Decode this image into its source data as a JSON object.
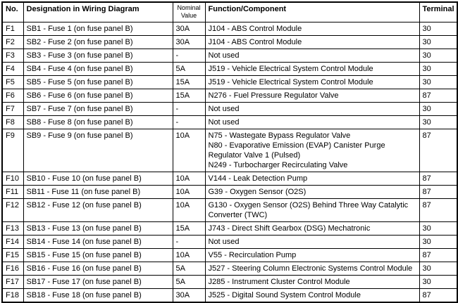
{
  "table": {
    "headers": {
      "no": "No.",
      "designation": "Designation in Wiring Diagram",
      "nominal": "Nominal\nValue",
      "function": "Function/Component",
      "terminal": "Terminal"
    },
    "rows": [
      {
        "no": "F1",
        "designation": "SB1 - Fuse 1 (on fuse panel B)",
        "nominal": "30A",
        "function": "J104 - ABS Control Module",
        "terminal": "30"
      },
      {
        "no": "F2",
        "designation": "SB2 - Fuse 2 (on fuse panel B)",
        "nominal": "30A",
        "function": "J104 - ABS Control Module",
        "terminal": "30"
      },
      {
        "no": "F3",
        "designation": "SB3 - Fuse 3 (on fuse panel B)",
        "nominal": "-",
        "function": "Not used",
        "terminal": "30"
      },
      {
        "no": "F4",
        "designation": "SB4 - Fuse 4 (on fuse panel B)",
        "nominal": "5A",
        "function": "J519 - Vehicle Electrical System Control Module",
        "terminal": "30"
      },
      {
        "no": "F5",
        "designation": "SB5 - Fuse 5 (on fuse panel B)",
        "nominal": "15A",
        "function": "J519 - Vehicle Electrical System Control Module",
        "terminal": "30"
      },
      {
        "no": "F6",
        "designation": "SB6 - Fuse 6 (on fuse panel B)",
        "nominal": "15A",
        "function": "N276 - Fuel Pressure Regulator Valve",
        "terminal": "87"
      },
      {
        "no": "F7",
        "designation": "SB7 - Fuse 7 (on fuse panel B)",
        "nominal": "-",
        "function": "Not used",
        "terminal": "30"
      },
      {
        "no": "F8",
        "designation": "SB8 - Fuse 8 (on fuse panel B)",
        "nominal": "-",
        "function": "Not used",
        "terminal": "30"
      },
      {
        "no": "F9",
        "designation": "SB9 - Fuse 9 (on fuse panel B)",
        "nominal": "10A",
        "function": "N75 - Wastegate Bypass Regulator Valve\nN80 - Evaporative Emission (EVAP) Canister Purge Regulator Valve 1 (Pulsed)\nN249 - Turbocharger Recirculating Valve",
        "terminal": "87"
      },
      {
        "no": "F10",
        "designation": "SB10 - Fuse 10 (on fuse panel B)",
        "nominal": "10A",
        "function": "V144 - Leak Detection Pump",
        "terminal": "87"
      },
      {
        "no": "F11",
        "designation": "SB11 - Fuse 11 (on fuse panel B)",
        "nominal": "10A",
        "function": "G39 - Oxygen Sensor (O2S)",
        "terminal": "87"
      },
      {
        "no": "F12",
        "designation": "SB12 - Fuse 12 (on fuse panel B)",
        "nominal": "10A",
        "function": "G130 - Oxygen Sensor (O2S) Behind Three Way Catalytic Converter (TWC)",
        "terminal": "87"
      },
      {
        "no": "F13",
        "designation": "SB13 - Fuse 13 (on fuse panel B)",
        "nominal": "15A",
        "function": "J743 - Direct Shift Gearbox (DSG) Mechatronic",
        "terminal": "30"
      },
      {
        "no": "F14",
        "designation": "SB14 - Fuse 14 (on fuse panel B)",
        "nominal": "-",
        "function": "Not used",
        "terminal": "30"
      },
      {
        "no": "F15",
        "designation": "SB15 - Fuse 15 (on fuse panel B)",
        "nominal": "10A",
        "function": "V55 - Recirculation Pump",
        "terminal": "87"
      },
      {
        "no": "F16",
        "designation": "SB16 - Fuse 16 (on fuse panel B)",
        "nominal": "5A",
        "function": "J527 - Steering Column Electronic Systems Control Module",
        "terminal": "30"
      },
      {
        "no": "F17",
        "designation": "SB17 - Fuse 17 (on fuse panel B)",
        "nominal": "5A",
        "function": "J285 - Instrument Cluster Control Module",
        "terminal": "30"
      },
      {
        "no": "F18",
        "designation": "SB18 - Fuse 18 (on fuse panel B)",
        "nominal": "30A",
        "function": "J525 - Digital Sound System Control Module",
        "terminal": "87"
      }
    ]
  }
}
